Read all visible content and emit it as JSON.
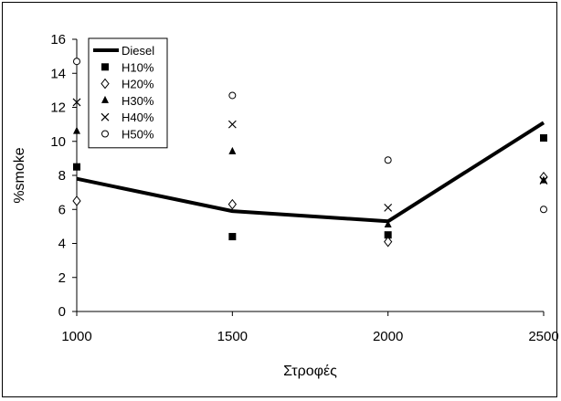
{
  "chart_data": {
    "type": "line",
    "title": "",
    "xlabel": "Στροφές",
    "ylabel": "%smoke",
    "x": [
      1000,
      1500,
      2000,
      2500
    ],
    "xlim": [
      1000,
      2500
    ],
    "ylim": [
      0,
      16
    ],
    "xticks": [
      "1000",
      "1500",
      "2000",
      "2500"
    ],
    "yticks": [
      "0",
      "2",
      "4",
      "6",
      "8",
      "10",
      "12",
      "14",
      "16"
    ],
    "grid": false,
    "legend_position": "top-left",
    "series": [
      {
        "name": "Diesel",
        "style": "line",
        "color": "#000000",
        "values": [
          7.8,
          5.9,
          5.3,
          11.1
        ]
      },
      {
        "name": "H10%",
        "style": "marker",
        "marker": "square",
        "values": [
          8.5,
          4.4,
          4.5,
          10.2
        ]
      },
      {
        "name": "H20%",
        "style": "marker",
        "marker": "diamond",
        "values": [
          6.5,
          6.3,
          4.1,
          7.9
        ]
      },
      {
        "name": "H30%",
        "style": "marker",
        "marker": "triangle",
        "values": [
          10.6,
          9.4,
          5.1,
          7.7
        ]
      },
      {
        "name": "H40%",
        "style": "marker",
        "marker": "x",
        "values": [
          12.3,
          11.0,
          6.1,
          7.7
        ]
      },
      {
        "name": "H50%",
        "style": "marker",
        "marker": "circle",
        "values": [
          14.7,
          12.7,
          8.9,
          6.0
        ]
      }
    ]
  }
}
